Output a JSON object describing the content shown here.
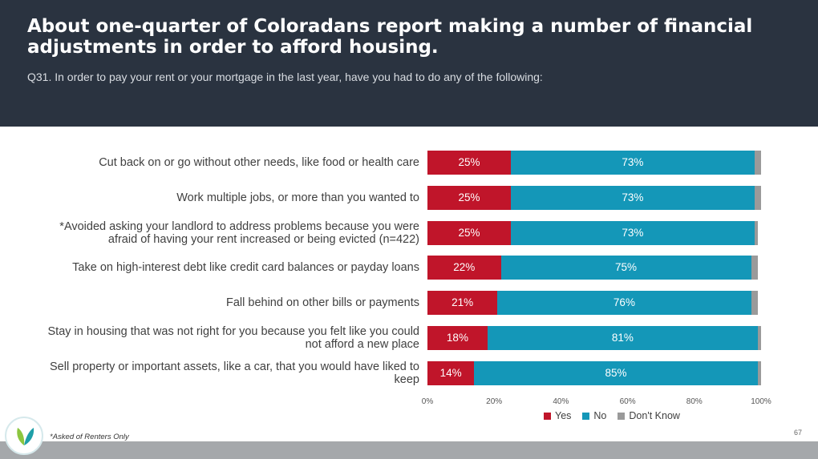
{
  "header": {
    "title": "About one-quarter of Coloradans report making a number of financial adjustments in order to afford housing.",
    "subtitle": "Q31. In order to pay your rent or your mortgage in the last year, have you had to do any of the following:"
  },
  "chart_data": {
    "type": "bar",
    "orientation": "horizontal-stacked-100",
    "categories": [
      "Cut back on or go without other needs, like food or health care",
      "Work multiple jobs, or more than you wanted to",
      "*Avoided asking your landlord to address problems because you were afraid of having your rent increased or being evicted (n=422)",
      "Take on high-interest debt like credit card balances or payday loans",
      "Fall behind on other bills or payments",
      "Stay in housing that was not right for you because you felt like you could not afford a new place",
      "Sell property or important assets, like a car, that you would have liked to keep"
    ],
    "series": [
      {
        "name": "Yes",
        "values": [
          25,
          25,
          25,
          22,
          21,
          18,
          14
        ],
        "labels": [
          "25%",
          "25%",
          "25%",
          "22%",
          "21%",
          "18%",
          "14%"
        ],
        "color": "#c0152a"
      },
      {
        "name": "No",
        "values": [
          73,
          73,
          73,
          75,
          76,
          81,
          85
        ],
        "labels": [
          "73%",
          "73%",
          "73%",
          "75%",
          "76%",
          "81%",
          "85%"
        ],
        "color": "#1497b8"
      },
      {
        "name": "Don't Know",
        "values": [
          2,
          2,
          1,
          2,
          2,
          1,
          1
        ],
        "color": "#9a9a9a"
      }
    ],
    "xlim": [
      0,
      100
    ],
    "xticks": [
      "0%",
      "20%",
      "40%",
      "60%",
      "80%",
      "100%"
    ],
    "legend_position": "bottom"
  },
  "footer": {
    "footnote": "*Asked of Renters Only",
    "page_number": "67"
  },
  "logo": {
    "name": "leaf-logo-icon",
    "color": "#3aa6a0"
  }
}
